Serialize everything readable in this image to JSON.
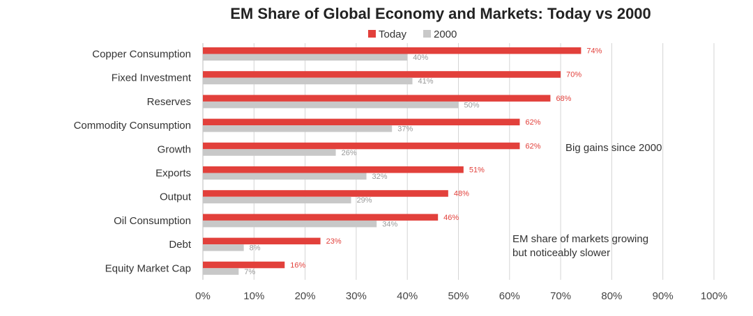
{
  "chart_data": {
    "type": "bar",
    "orientation": "horizontal",
    "title": "EM Share of Global Economy and Markets: Today vs 2000",
    "categories": [
      "Copper Consumption",
      "Fixed Investment",
      "Reserves",
      "Commodity Consumption",
      "Growth",
      "Exports",
      "Output",
      "Oil Consumption",
      "Debt",
      "Equity Market Cap"
    ],
    "series": [
      {
        "name": "Today",
        "color": "#e2403b",
        "values": [
          74,
          70,
          68,
          62,
          62,
          51,
          48,
          46,
          23,
          16
        ],
        "labels": [
          "74%",
          "70%",
          "68%",
          "62%",
          "62%",
          "51%",
          "48%",
          "46%",
          "23%",
          "16%"
        ]
      },
      {
        "name": "2000",
        "color": "#c8c8c8",
        "values": [
          40,
          41,
          50,
          37,
          26,
          32,
          29,
          34,
          8,
          7
        ],
        "labels": [
          "40%",
          "41%",
          "50%",
          "37%",
          "26%",
          "32%",
          "29%",
          "34%",
          "8%",
          "7%"
        ]
      }
    ],
    "xlim": [
      0,
      100
    ],
    "xticks": [
      0,
      10,
      20,
      30,
      40,
      50,
      60,
      70,
      80,
      90,
      100
    ],
    "xtick_labels": [
      "0%",
      "10%",
      "20%",
      "30%",
      "40%",
      "50%",
      "60%",
      "70%",
      "80%",
      "90%",
      "100%"
    ],
    "grid": true,
    "legend_position": "top-center",
    "annotations": [
      {
        "text": "Big gains since 2000",
        "lines": [
          "Big gains since 2000"
        ]
      },
      {
        "text": "EM share of markets growing but noticeably slower",
        "lines": [
          "EM share of markets growing",
          "but noticeably slower"
        ]
      }
    ]
  }
}
